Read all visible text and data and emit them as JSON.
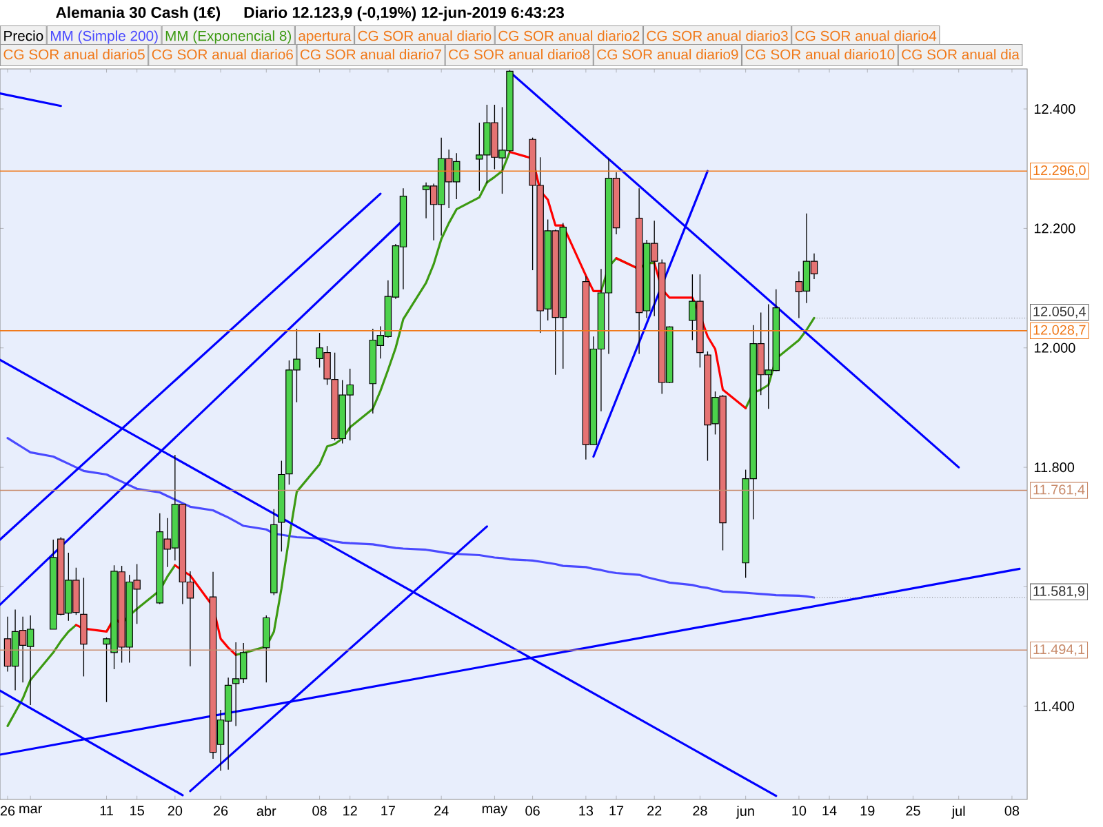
{
  "chart_data": {
    "type": "candlestick",
    "title": "Alemania 30 Cash (1€)",
    "subtitle": "Diario 12.123,9 (-0,19%) 12-jun-2019 6:43:23",
    "xlim": [
      "2019-02-25",
      "2019-07-10"
    ],
    "ylim": [
      11244,
      12467
    ],
    "xticks": [
      {
        "value": "2019-02-26",
        "label": "26"
      },
      {
        "value": "2019-03-01",
        "label": "mar"
      },
      {
        "value": "2019-03-11",
        "label": "11"
      },
      {
        "value": "2019-03-15",
        "label": "15"
      },
      {
        "value": "2019-03-20",
        "label": "20"
      },
      {
        "value": "2019-03-26",
        "label": "26"
      },
      {
        "value": "2019-04-01",
        "label": "abr"
      },
      {
        "value": "2019-04-08",
        "label": "08"
      },
      {
        "value": "2019-04-12",
        "label": "12"
      },
      {
        "value": "2019-04-17",
        "label": "17"
      },
      {
        "value": "2019-04-24",
        "label": "24"
      },
      {
        "value": "2019-05-01",
        "label": "may"
      },
      {
        "value": "2019-05-06",
        "label": "06"
      },
      {
        "value": "2019-05-13",
        "label": "13"
      },
      {
        "value": "2019-05-17",
        "label": "17"
      },
      {
        "value": "2019-05-22",
        "label": "22"
      },
      {
        "value": "2019-05-28",
        "label": "28"
      },
      {
        "value": "2019-06-03",
        "label": "jun"
      },
      {
        "value": "2019-06-10",
        "label": "10"
      },
      {
        "value": "2019-06-14",
        "label": "14"
      },
      {
        "value": "2019-06-19",
        "label": "19"
      },
      {
        "value": "2019-06-25",
        "label": "25"
      },
      {
        "value": "2019-07-01",
        "label": "jul"
      },
      {
        "value": "2019-07-08",
        "label": "08"
      }
    ],
    "yticks": [
      {
        "value": 11400,
        "label": "11.400"
      },
      {
        "value": 11600,
        "label": null
      },
      {
        "value": 11800,
        "label": "11.800"
      },
      {
        "value": 12000,
        "label": "12.000"
      },
      {
        "value": 12200,
        "label": "12.200"
      },
      {
        "value": 12400,
        "label": "12.400"
      }
    ],
    "x": [
      "2019-02-26",
      "2019-02-27",
      "2019-02-28",
      "2019-03-01",
      "2019-03-04",
      "2019-03-05",
      "2019-03-06",
      "2019-03-07",
      "2019-03-08",
      "2019-03-11",
      "2019-03-12",
      "2019-03-13",
      "2019-03-14",
      "2019-03-15",
      "2019-03-18",
      "2019-03-19",
      "2019-03-20",
      "2019-03-21",
      "2019-03-22",
      "2019-03-25",
      "2019-03-26",
      "2019-03-27",
      "2019-03-28",
      "2019-03-29",
      "2019-04-01",
      "2019-04-02",
      "2019-04-03",
      "2019-04-04",
      "2019-04-05",
      "2019-04-08",
      "2019-04-09",
      "2019-04-10",
      "2019-04-11",
      "2019-04-12",
      "2019-04-15",
      "2019-04-16",
      "2019-04-17",
      "2019-04-18",
      "2019-04-19",
      "2019-04-22",
      "2019-04-23",
      "2019-04-24",
      "2019-04-25",
      "2019-04-26",
      "2019-04-29",
      "2019-04-30",
      "2019-05-01",
      "2019-05-02",
      "2019-05-03",
      "2019-05-06",
      "2019-05-07",
      "2019-05-08",
      "2019-05-09",
      "2019-05-10",
      "2019-05-13",
      "2019-05-14",
      "2019-05-15",
      "2019-05-16",
      "2019-05-17",
      "2019-05-20",
      "2019-05-21",
      "2019-05-22",
      "2019-05-23",
      "2019-05-24",
      "2019-05-27",
      "2019-05-28",
      "2019-05-29",
      "2019-05-30",
      "2019-05-31",
      "2019-06-03",
      "2019-06-04",
      "2019-06-05",
      "2019-06-06",
      "2019-06-07",
      "2019-06-10",
      "2019-06-11",
      "2019-06-12"
    ],
    "series": [
      {
        "name": "Precio",
        "color": "#000000",
        "ohlc": [
          [
            11513,
            11550,
            11458,
            11467
          ],
          [
            11467,
            11562,
            11427,
            11525
          ],
          [
            11527,
            11550,
            11440,
            11502
          ],
          [
            11500,
            11552,
            11402,
            11529
          ],
          [
            11529,
            11679,
            11529,
            11649
          ],
          [
            11680,
            11683,
            11552,
            11554
          ],
          [
            11556,
            11657,
            11543,
            11611
          ],
          [
            11611,
            11632,
            11553,
            11557
          ],
          [
            11554,
            11615,
            11450,
            11504
          ],
          [
            11504,
            11515,
            11407,
            11513
          ],
          [
            11490,
            11636,
            11462,
            11626
          ],
          [
            11625,
            11635,
            11473,
            11499
          ],
          [
            11499,
            11620,
            11473,
            11608
          ],
          [
            11611,
            11638,
            11538,
            11596
          ],
          [
            11573,
            11723,
            11571,
            11692
          ],
          [
            11680,
            11715,
            11633,
            11663
          ],
          [
            11665,
            11821,
            11644,
            11738
          ],
          [
            11738,
            11738,
            11571,
            11608
          ],
          [
            11608,
            11626,
            11467,
            11581
          ],
          [
            11583,
            11625,
            11312,
            11323
          ],
          [
            11336,
            11394,
            11292,
            11377
          ],
          [
            11375,
            11448,
            11294,
            11435
          ],
          [
            11438,
            11507,
            11367,
            11446
          ],
          [
            11446,
            11506,
            11439,
            11490
          ],
          [
            11498,
            11552,
            11440,
            11548
          ],
          [
            11590,
            11730,
            11586,
            11704
          ],
          [
            11708,
            11811,
            11659,
            11788
          ],
          [
            11789,
            11979,
            11771,
            11963
          ],
          [
            11963,
            12032,
            11909,
            11981
          ],
          [
            11982,
            12025,
            11967,
            12000
          ],
          [
            11992,
            12003,
            11938,
            11948
          ],
          [
            11947,
            11992,
            11845,
            11848
          ],
          [
            11848,
            11946,
            11840,
            11921
          ],
          [
            11921,
            11965,
            11845,
            11938
          ],
          [
            11940,
            12032,
            11890,
            12013
          ],
          [
            12004,
            12036,
            11982,
            12021
          ],
          [
            12019,
            12113,
            12017,
            12086
          ],
          [
            12085,
            12174,
            12082,
            12171
          ],
          [
            12169,
            12267,
            12098,
            12254
          ],
          [
            12265,
            12277,
            12217,
            12271
          ],
          [
            12271,
            12275,
            12180,
            12240
          ],
          [
            12240,
            12352,
            12188,
            12317
          ],
          [
            12317,
            12332,
            12234,
            12278
          ],
          [
            12278,
            12326,
            12249,
            12312
          ],
          [
            12316,
            12377,
            12263,
            12323
          ],
          [
            12323,
            12407,
            12275,
            12377
          ],
          [
            12377,
            12407,
            12299,
            12319
          ],
          [
            12318,
            12403,
            12258,
            12331
          ],
          [
            12330,
            12465,
            12328,
            12463
          ],
          [
            12349,
            12352,
            12130,
            12272
          ],
          [
            12272,
            12319,
            12025,
            12062
          ],
          [
            12065,
            12215,
            12046,
            12196
          ],
          [
            12196,
            12198,
            11955,
            12051
          ],
          [
            12051,
            12209,
            11965,
            12202
          ],
          [
            12111,
            12120,
            11813,
            11838
          ],
          [
            11838,
            12019,
            11838,
            11998
          ],
          [
            11998,
            12132,
            11894,
            12092
          ],
          [
            12092,
            12317,
            11990,
            12284
          ],
          [
            12284,
            12294,
            12190,
            12201
          ],
          [
            12217,
            12267,
            11990,
            12059
          ],
          [
            12062,
            12181,
            12050,
            12175
          ],
          [
            12175,
            12213,
            12053,
            12145
          ],
          [
            12142,
            12148,
            11923,
            11942
          ],
          [
            11942,
            12036,
            11941,
            12035
          ],
          [
            12046,
            12123,
            12013,
            12078
          ],
          [
            12078,
            12123,
            11967,
            11992
          ],
          [
            11988,
            11994,
            11811,
            11871
          ],
          [
            11873,
            11927,
            11855,
            11917
          ],
          [
            11919,
            11921,
            11661,
            11707
          ],
          [
            11640,
            11796,
            11615,
            11781
          ],
          [
            11781,
            12038,
            11713,
            12007
          ],
          [
            12007,
            12059,
            11921,
            11955
          ],
          [
            11955,
            12073,
            11898,
            11963
          ],
          [
            11962,
            12098,
            11961,
            12067
          ],
          [
            12111,
            12128,
            12050,
            12094
          ],
          [
            12095,
            12225,
            12075,
            12145
          ],
          [
            12145,
            12158,
            12115,
            12124
          ]
        ]
      },
      {
        "name": "MM (Simple 200)",
        "type": "line",
        "color": "#4a4aff",
        "values": [
          11849,
          11841,
          11833,
          11825,
          11818,
          11812,
          11806,
          11800,
          11794,
          11788,
          11782,
          11776,
          11770,
          11764,
          11758,
          11752,
          11746,
          11740,
          11734,
          11728,
          11722,
          11716,
          11709,
          11702,
          11696,
          11689,
          11687,
          11685,
          11683,
          11681,
          11679,
          11676,
          11674,
          11673,
          11671,
          11669,
          11667,
          11665,
          11664,
          11662,
          11660,
          11658,
          11656,
          11655,
          11653,
          11651,
          11649,
          11648,
          11646,
          11644,
          11642,
          11640,
          11638,
          11635,
          11633,
          11630,
          11628,
          11625,
          11623,
          11620,
          11616,
          11613,
          11610,
          11607,
          11603,
          11600,
          11598,
          11595,
          11592,
          11590,
          11589,
          11588,
          11587,
          11586,
          11585,
          11584,
          11582
        ]
      },
      {
        "name": "MM (Exponencial 8)",
        "type": "line",
        "color": "#3c9a12",
        "values": [
          11367,
          11390,
          11413,
          11444,
          11490,
          11509,
          11525,
          11536,
          null,
          11525,
          11547,
          11538,
          11552,
          11563,
          11594,
          11617,
          11636,
          null,
          null,
          null,
          null,
          null,
          11486,
          11489,
          11500,
          11525,
          11598,
          11682,
          11759,
          11805,
          11835,
          11839,
          11848,
          11867,
          11898,
          11928,
          11963,
          12000,
          12048,
          12109,
          12140,
          12182,
          12209,
          12232,
          12252,
          12277,
          12286,
          12296,
          12328,
          null,
          null,
          null,
          null,
          null,
          null,
          null,
          12095,
          12136,
          12150,
          12132,
          12142,
          12142,
          null,
          null,
          null,
          null,
          null,
          null,
          null,
          11899,
          11925,
          11930,
          11938,
          11982,
          12013,
          12030,
          12050
        ]
      },
      {
        "type": "line",
        "color": "#ff0000",
        "values": [
          null,
          null,
          null,
          null,
          null,
          null,
          null,
          11536,
          11530,
          11525,
          11547,
          11538,
          null,
          null,
          null,
          null,
          11636,
          11627,
          11619,
          11567,
          11513,
          11498,
          11486,
          null,
          null,
          null,
          null,
          null,
          null,
          null,
          null,
          null,
          null,
          null,
          null,
          null,
          null,
          null,
          null,
          null,
          null,
          null,
          null,
          null,
          null,
          null,
          null,
          null,
          12328,
          12317,
          12263,
          12248,
          12205,
          12205,
          12121,
          12095,
          12095,
          null,
          12150,
          12132,
          null,
          12142,
          12098,
          12084,
          12084,
          12055,
          12019,
          11998,
          11930,
          11899,
          null,
          null,
          null,
          null,
          null,
          null,
          null
        ]
      },
      {
        "type": "line",
        "color": "#0000ff",
        "x": [
          "2019-02-25",
          "2019-03-05"
        ],
        "values": [
          12426,
          12405
        ]
      },
      {
        "type": "line",
        "color": "#0000ff",
        "x": [
          "2019-02-25",
          "2019-04-16"
        ],
        "values": [
          11679,
          12258
        ]
      },
      {
        "type": "line",
        "color": "#0000ff",
        "x": [
          "2019-02-25",
          "2019-04-19"
        ],
        "values": [
          11570,
          12214
        ]
      },
      {
        "type": "line",
        "color": "#0000ff",
        "x": [
          "2019-03-22",
          "2019-04-30"
        ],
        "values": [
          11258,
          11701
        ]
      },
      {
        "type": "line",
        "color": "#0000ff",
        "x": [
          "2019-02-25",
          "2019-06-07"
        ],
        "values": [
          11980,
          11250
        ]
      },
      {
        "type": "line",
        "color": "#0000ff",
        "x": [
          "2019-02-25",
          "2019-03-21"
        ],
        "values": [
          11426,
          11251
        ]
      },
      {
        "type": "line",
        "color": "#0000ff",
        "x": [
          "2019-05-14",
          "2019-05-29"
        ],
        "values": [
          11818,
          12296
        ]
      },
      {
        "type": "line",
        "color": "#0000ff",
        "x": [
          "2019-05-03",
          "2019-07-01"
        ],
        "values": [
          12462,
          11800
        ]
      },
      {
        "type": "line",
        "color": "#0000ff",
        "x": [
          "2019-02-25",
          "2019-07-09"
        ],
        "values": [
          11319,
          11630
        ]
      }
    ],
    "ref_lines": [
      {
        "axis": "y",
        "value": 12296.0,
        "label": "12.296,0",
        "color": "#f07818"
      },
      {
        "axis": "y",
        "value": 12028.7,
        "label": "12.028,7",
        "color": "#f07818"
      },
      {
        "axis": "y",
        "value": 11761.4,
        "label": "11.761,4",
        "color": "#c88a6a"
      },
      {
        "axis": "y",
        "value": 11494.1,
        "label": "11.494,1",
        "color": "#c88a6a"
      }
    ],
    "annotations": [
      {
        "text": "12.050,4",
        "x": "2019-06-12",
        "y": 12050
      },
      {
        "text": "11.581,9",
        "x": "2019-06-12",
        "y": 11582
      },
      "apertura",
      "CG SOR anual diario",
      "CG SOR anual diario2",
      "CG SOR anual diario3",
      "CG SOR anual diario4",
      "CG SOR anual diario5",
      "CG SOR anual diario6",
      "CG SOR anual diario7",
      "CG SOR anual diario8",
      "CG SOR anual diario9",
      "CG SOR anual diario10",
      "CG SOR anual dia"
    ],
    "legend": "top"
  }
}
